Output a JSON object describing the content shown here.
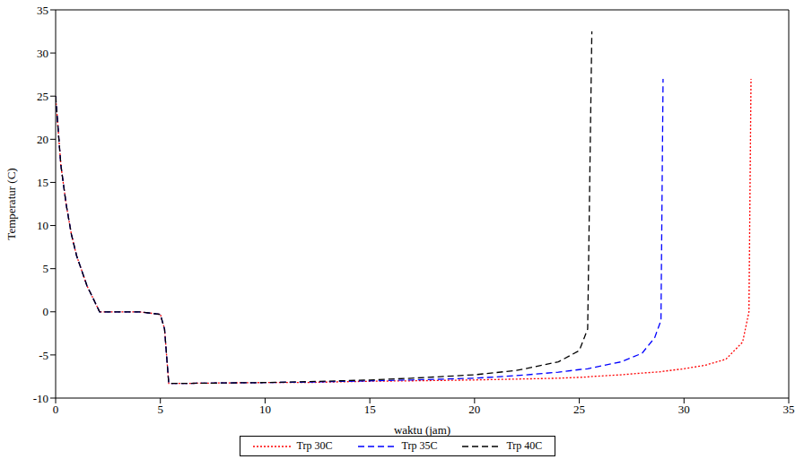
{
  "chart_data": {
    "type": "line",
    "x_label": "waktu (jam)",
    "y_label": "Temperatur (C)",
    "x": [
      0,
      0.25,
      0.5,
      0.75,
      1,
      1.5,
      2,
      2.1,
      3,
      4,
      5,
      5.2,
      5.4,
      6,
      8,
      10,
      12,
      15,
      17,
      20,
      22,
      24,
      25,
      25.4,
      25.6,
      27,
      28,
      28.6,
      28.9,
      29,
      30,
      31,
      32,
      32.8,
      33.1,
      33.2
    ],
    "series": [
      {
        "name": "Trp 30C",
        "color": "#ff0000",
        "line_style": "dotted",
        "values": [
          25,
          17,
          12.5,
          9,
          6.5,
          3,
          0.5,
          0,
          0,
          0,
          -0.3,
          -2,
          -8.3,
          -8.3,
          -8.25,
          -8.2,
          -8.2,
          -8.05,
          -8,
          -7.9,
          -7.8,
          -7.7,
          -7.6,
          -7.55,
          -7.5,
          -7.3,
          -7.1,
          -7,
          -6.95,
          -6.9,
          -6.6,
          -6.2,
          -5.5,
          -3.5,
          0,
          27
        ]
      },
      {
        "name": "Trp 35C",
        "color": "#0000ff",
        "line_style": "dashed",
        "values": [
          25,
          17,
          12.5,
          9,
          6.5,
          3,
          0.5,
          0,
          0,
          0,
          -0.3,
          -2,
          -8.3,
          -8.3,
          -8.25,
          -8.2,
          -8.15,
          -8,
          -7.9,
          -7.7,
          -7.4,
          -7,
          -6.7,
          -6.6,
          -6.5,
          -5.8,
          -4.8,
          -3,
          -1,
          27,
          null,
          null,
          null,
          null,
          null,
          null
        ]
      },
      {
        "name": "Trp 40C",
        "color": "#000000",
        "line_style": "dashed",
        "values": [
          25,
          17,
          12.5,
          9,
          6.5,
          3,
          0.5,
          0,
          0,
          0,
          -0.3,
          -2,
          -8.3,
          -8.3,
          -8.25,
          -8.2,
          -8.1,
          -7.9,
          -7.7,
          -7.3,
          -6.8,
          -5.8,
          -4.5,
          -2,
          32.5,
          null,
          null,
          null,
          null,
          null,
          null,
          null,
          null,
          null,
          null,
          null
        ]
      }
    ],
    "xlim": [
      0,
      35
    ],
    "xticks": [
      0,
      5,
      10,
      15,
      20,
      25,
      30,
      35
    ],
    "ylim": [
      -10,
      35
    ],
    "yticks": [
      -10,
      -5,
      0,
      5,
      10,
      15,
      20,
      25,
      30,
      35
    ],
    "legend": "bottom",
    "grid": false
  }
}
